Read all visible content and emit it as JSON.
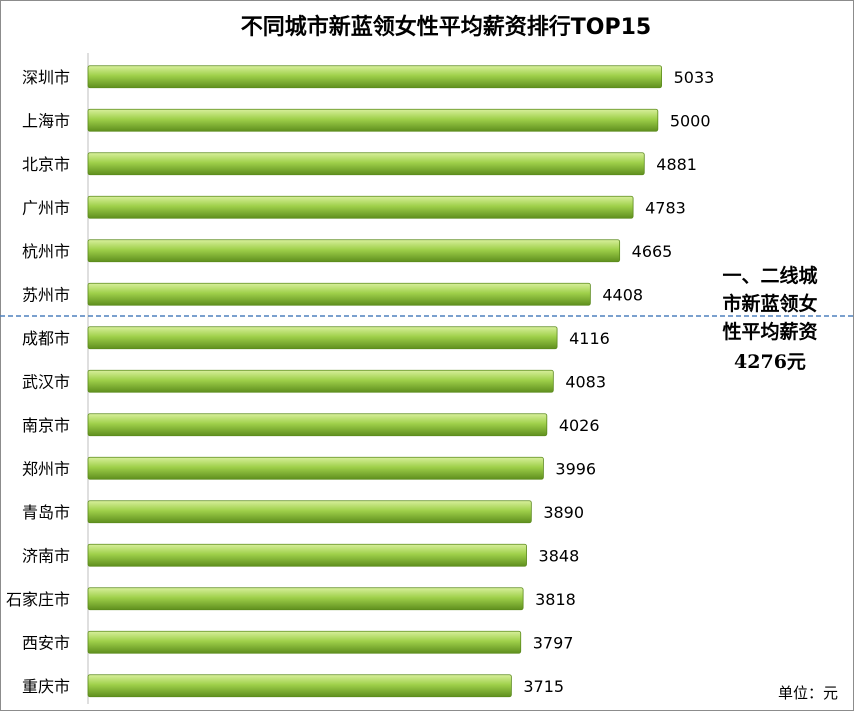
{
  "chart_data": {
    "type": "bar",
    "orientation": "horizontal",
    "title": "不同城市新蓝领女性平均薪资排行TOP15",
    "categories": [
      "深圳市",
      "上海市",
      "北京市",
      "广州市",
      "杭州市",
      "苏州市",
      "成都市",
      "武汉市",
      "南京市",
      "郑州市",
      "青岛市",
      "济南市",
      "石家庄市",
      "西安市",
      "重庆市"
    ],
    "values": [
      5033,
      5000,
      4881,
      4783,
      4665,
      4408,
      4116,
      4083,
      4026,
      3996,
      3890,
      3848,
      3818,
      3797,
      3715
    ],
    "value_labels": [
      "5033",
      "5000",
      "4881",
      "4783",
      "4665",
      "4408",
      "4116",
      "4083",
      "4026",
      "3996",
      "3890",
      "3848",
      "3818",
      "3797",
      "3715"
    ],
    "xlim": [
      0,
      5800
    ],
    "grid": false,
    "bar_color": "#8dc63f",
    "divider_after_category": "苏州市",
    "annotation": {
      "lines": [
        "一、二线城",
        "市新蓝领女",
        "性平均薪资",
        "4276元"
      ]
    },
    "unit_label": "单位：元"
  }
}
